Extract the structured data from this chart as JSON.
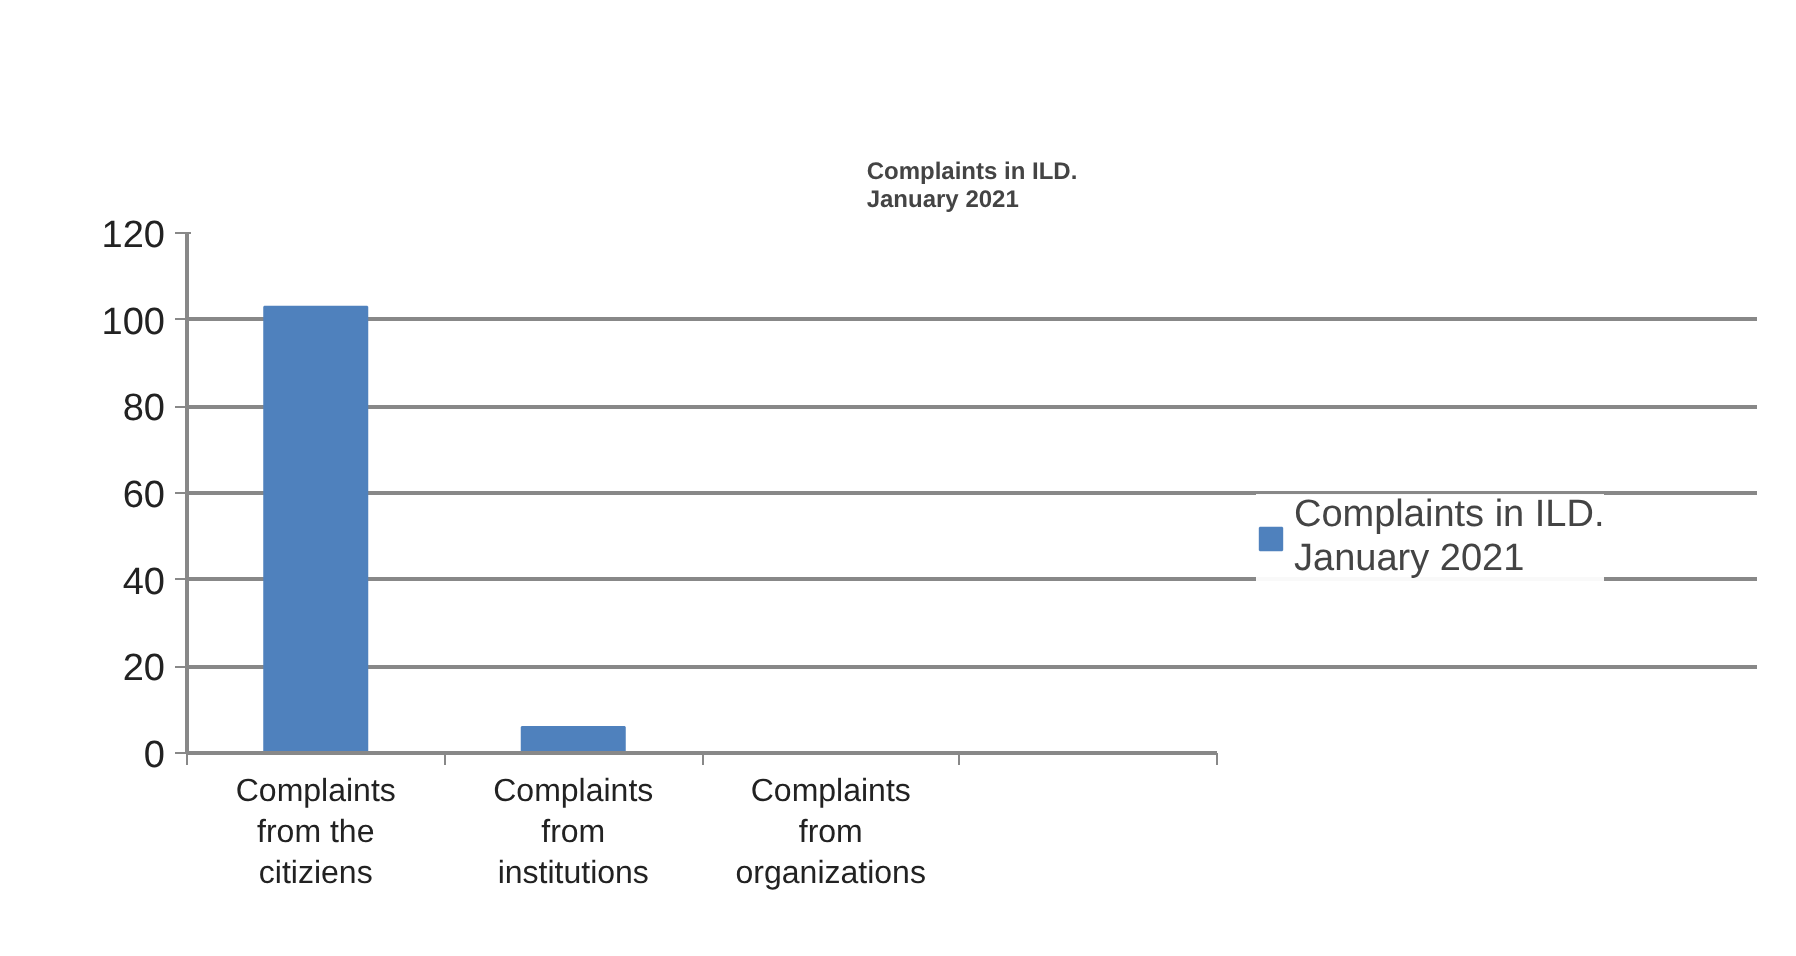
{
  "chart_data": {
    "type": "bar",
    "title": "Complaints in ILD. January 2021",
    "categories": [
      "Complaints from the citiziens",
      "Complaints from institutions",
      "Complaints from organizations",
      null
    ],
    "series": [
      {
        "name": "Complaints in ILD. January 2021",
        "color": "#4f81bd",
        "values": [
          103,
          6,
          0,
          null
        ]
      }
    ],
    "ylim": [
      0,
      120
    ],
    "yticks": [
      0,
      20,
      40,
      60,
      80,
      100,
      120
    ],
    "grid": "y",
    "legend": "right"
  }
}
